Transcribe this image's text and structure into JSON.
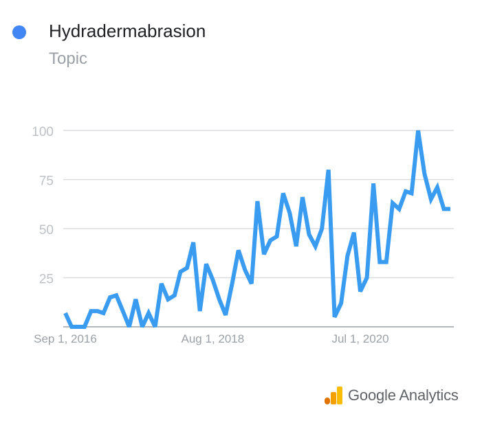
{
  "legend": {
    "series_name": "Hydradermabrasion",
    "series_type": "Topic",
    "color": "#4285f4"
  },
  "chart_data": {
    "type": "line",
    "ylim": [
      0,
      100
    ],
    "yticks": [
      "100",
      "75",
      "50",
      "25"
    ],
    "xticks": [
      {
        "label": "Sep 1, 2016",
        "date": "2016-09-01"
      },
      {
        "label": "Aug 1, 2018",
        "date": "2018-08-01"
      },
      {
        "label": "Jul 1, 2020",
        "date": "2020-07-01"
      }
    ],
    "line_color": "#3a9cf0",
    "grid": true,
    "series": [
      {
        "name": "Hydradermabrasion",
        "x": [
          "2016-09-01",
          "2016-10-01",
          "2016-11-01",
          "2016-12-01",
          "2017-01-01",
          "2017-02-01",
          "2017-03-01",
          "2017-04-01",
          "2017-05-01",
          "2017-06-01",
          "2017-07-01",
          "2017-08-01",
          "2017-09-01",
          "2017-10-01",
          "2017-11-01",
          "2017-12-01",
          "2018-01-01",
          "2018-02-01",
          "2018-03-01",
          "2018-04-01",
          "2018-05-01",
          "2018-06-01",
          "2018-07-01",
          "2018-08-01",
          "2018-09-01",
          "2018-10-01",
          "2018-11-01",
          "2018-12-01",
          "2019-01-01",
          "2019-02-01",
          "2019-03-01",
          "2019-04-01",
          "2019-05-01",
          "2019-06-01",
          "2019-07-01",
          "2019-08-01",
          "2019-09-01",
          "2019-10-01",
          "2019-11-01",
          "2019-12-01",
          "2020-01-01",
          "2020-02-01",
          "2020-03-01",
          "2020-04-01",
          "2020-05-01",
          "2020-06-01",
          "2020-07-01",
          "2020-08-01",
          "2020-09-01",
          "2020-10-01",
          "2020-11-01",
          "2020-12-01",
          "2021-01-01",
          "2021-02-01",
          "2021-03-01",
          "2021-04-01",
          "2021-05-01",
          "2021-06-01",
          "2021-07-01",
          "2021-08-01",
          "2021-09-01"
        ],
        "values": [
          7,
          0,
          0,
          0,
          8,
          8,
          7,
          15,
          16,
          8,
          0,
          14,
          0,
          7,
          0,
          22,
          14,
          16,
          28,
          30,
          43,
          8,
          32,
          24,
          14,
          6,
          22,
          39,
          29,
          22,
          64,
          37,
          44,
          46,
          68,
          58,
          41,
          66,
          47,
          41,
          50,
          80,
          5,
          12,
          36,
          48,
          18,
          25,
          73,
          33,
          33,
          63,
          60,
          69,
          68,
          100,
          78,
          65,
          71,
          60,
          60
        ]
      }
    ]
  },
  "branding": {
    "logo_text": "Google Analytics"
  }
}
